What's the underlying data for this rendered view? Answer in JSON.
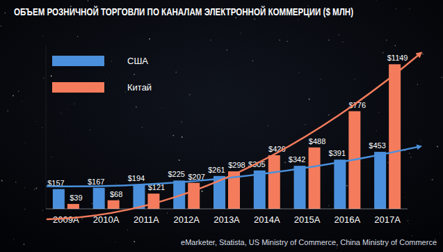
{
  "chart_data": {
    "type": "bar",
    "title": "ОБЪЕМ РОЗНИЧНОЙ ТОРГОВЛИ ПО КАНАЛАМ ЭЛЕКТРОННОЙ КОММЕРЦИИ ($ МЛН)",
    "source": "eMarketer, Statista, US Ministry of Commerce, China Ministry of Commerce",
    "categories": [
      "2009A",
      "2010A",
      "2011A",
      "2012A",
      "2013A",
      "2014A",
      "2015A",
      "2016A",
      "2017A"
    ],
    "series": [
      {
        "name": "США",
        "color": "#4a90dc",
        "values": [
          157,
          167,
          194,
          225,
          261,
          305,
          342,
          391,
          453
        ],
        "value_labels": [
          "$157",
          "$167",
          "$194",
          "$225",
          "$261",
          "$305",
          "$342",
          "$391",
          "$453"
        ]
      },
      {
        "name": "Китай",
        "color": "#f47c5c",
        "values": [
          39,
          68,
          121,
          207,
          298,
          426,
          488,
          776,
          1149
        ],
        "value_labels": [
          "$39",
          "$68",
          "$121",
          "$207",
          "$298",
          "$426",
          "$488",
          "$776",
          "$1149"
        ]
      }
    ],
    "ylim": [
      0,
      1300
    ],
    "grid": false,
    "legend": "top-left",
    "data_labels": true,
    "tick_labels": "x"
  }
}
